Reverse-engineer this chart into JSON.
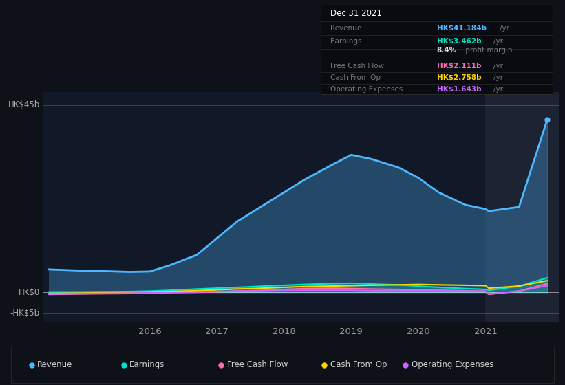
{
  "background_color": "#0e1218",
  "plot_bg_color": "#111827",
  "highlight_bg": "#1c2333",
  "title_box": {
    "date": "Dec 31 2021",
    "rows": [
      {
        "label": "Revenue",
        "value": "HK$41.184b",
        "unit": "/yr",
        "value_color": "#4db8ff"
      },
      {
        "label": "Earnings",
        "value": "HK$3.462b",
        "unit": "/yr",
        "value_color": "#00e5c8"
      },
      {
        "label": "",
        "value": "8.4%",
        "unit": " profit margin",
        "value_color": "#dddddd"
      },
      {
        "label": "Free Cash Flow",
        "value": "HK$2.111b",
        "unit": "/yr",
        "value_color": "#ff6eb4"
      },
      {
        "label": "Cash From Op",
        "value": "HK$2.758b",
        "unit": "/yr",
        "value_color": "#ffd700"
      },
      {
        "label": "Operating Expenses",
        "value": "HK$1.643b",
        "unit": "/yr",
        "value_color": "#cc66ff"
      }
    ]
  },
  "years": [
    2014.5,
    2015.0,
    2015.3,
    2015.7,
    2016.0,
    2016.3,
    2016.7,
    2017.0,
    2017.3,
    2017.7,
    2018.0,
    2018.3,
    2018.7,
    2019.0,
    2019.3,
    2019.7,
    2020.0,
    2020.3,
    2020.7,
    2021.0,
    2021.05,
    2021.5,
    2021.92
  ],
  "revenue": [
    5.5,
    5.2,
    5.1,
    4.9,
    5.0,
    6.5,
    9.0,
    13.0,
    17.0,
    21.0,
    24.0,
    27.0,
    30.5,
    33.0,
    32.0,
    30.0,
    27.5,
    24.0,
    21.0,
    20.0,
    19.5,
    20.5,
    41.5
  ],
  "earnings": [
    0.1,
    0.1,
    0.15,
    0.2,
    0.3,
    0.5,
    0.8,
    1.0,
    1.2,
    1.5,
    1.7,
    1.9,
    2.1,
    2.2,
    2.0,
    1.8,
    1.5,
    1.2,
    0.9,
    0.7,
    0.5,
    1.5,
    3.5
  ],
  "free_cash": [
    -0.5,
    -0.4,
    -0.35,
    -0.3,
    -0.2,
    -0.1,
    0.0,
    0.1,
    0.3,
    0.5,
    0.7,
    0.9,
    1.0,
    0.9,
    0.8,
    0.7,
    0.6,
    0.5,
    0.4,
    0.2,
    -0.5,
    0.3,
    2.1
  ],
  "cash_from_op": [
    -0.3,
    -0.2,
    -0.1,
    0.0,
    0.1,
    0.2,
    0.4,
    0.6,
    0.8,
    1.0,
    1.2,
    1.4,
    1.5,
    1.6,
    1.7,
    1.8,
    1.9,
    1.8,
    1.7,
    1.6,
    1.0,
    1.5,
    2.8
  ],
  "op_expenses": [
    -0.4,
    -0.3,
    -0.25,
    -0.2,
    -0.1,
    0.0,
    0.1,
    0.2,
    0.3,
    0.4,
    0.5,
    0.5,
    0.5,
    0.5,
    0.4,
    0.4,
    0.4,
    0.4,
    0.3,
    0.3,
    -0.4,
    0.3,
    1.6
  ],
  "revenue_color": "#4db8ff",
  "earnings_color": "#00e5c8",
  "free_cash_color": "#ff6eb4",
  "cash_from_op_color": "#ffd700",
  "op_expenses_color": "#cc66ff",
  "ylabel_hk45b": "HK$45b",
  "ylabel_hk0": "HK$0",
  "ylabel_neg5b": "-HK$5b",
  "xticks": [
    2016,
    2017,
    2018,
    2019,
    2020,
    2021
  ],
  "xlim_min": 2014.4,
  "xlim_max": 2022.1,
  "ylim_min": -7,
  "ylim_max": 48,
  "highlight_start": 2021.0,
  "legend": [
    {
      "label": "Revenue",
      "color": "#4db8ff"
    },
    {
      "label": "Earnings",
      "color": "#00e5c8"
    },
    {
      "label": "Free Cash Flow",
      "color": "#ff6eb4"
    },
    {
      "label": "Cash From Op",
      "color": "#ffd700"
    },
    {
      "label": "Operating Expenses",
      "color": "#cc66ff"
    }
  ]
}
